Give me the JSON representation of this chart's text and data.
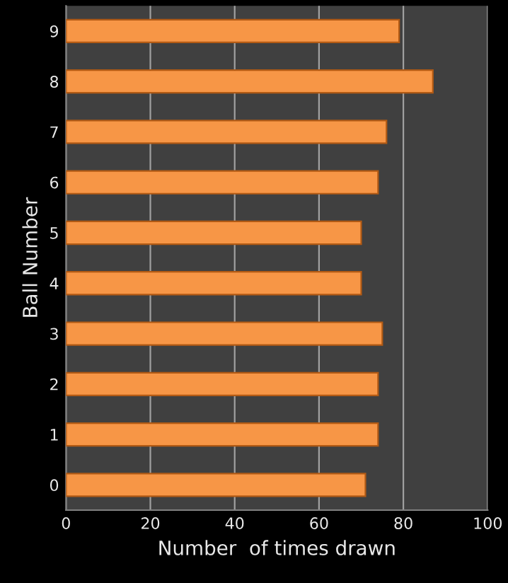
{
  "chart_data": {
    "type": "bar",
    "orientation": "horizontal",
    "xlabel": "Number  of times drawn",
    "ylabel": "Ball Number",
    "categories": [
      "9",
      "8",
      "7",
      "6",
      "5",
      "4",
      "3",
      "2",
      "1",
      "0"
    ],
    "values": [
      79,
      87,
      76,
      74,
      70,
      70,
      75,
      74,
      74,
      71
    ],
    "color": "#f79646",
    "xlim": [
      0,
      100
    ],
    "xticks": [
      0,
      20,
      40,
      60,
      80,
      100
    ],
    "grid": "x",
    "legend": false
  }
}
